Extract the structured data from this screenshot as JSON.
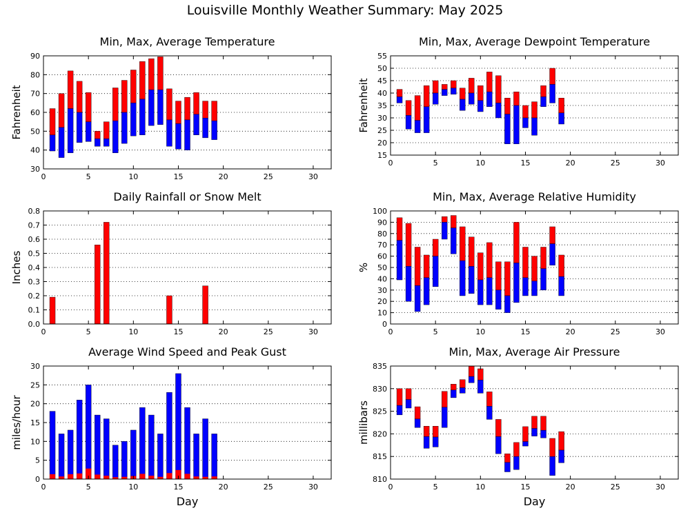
{
  "title": "Louisville Monthly Weather Summary: May 2025",
  "colors": {
    "max_part": "#ff0000",
    "min_part": "#0000ff",
    "grid": "#000000"
  },
  "chart_data": [
    {
      "id": "temperature",
      "type": "bar",
      "title": "Min, Max, Average Temperature",
      "xlabel": "",
      "ylabel": "Fahrenheit",
      "xlim": [
        0,
        32
      ],
      "ylim": [
        30,
        90
      ],
      "xticks": [
        0,
        5,
        10,
        15,
        20,
        25,
        30
      ],
      "yticks": [
        30,
        40,
        50,
        60,
        70,
        80,
        90
      ],
      "grid": true,
      "style": "range",
      "days": [
        1,
        2,
        3,
        4,
        5,
        6,
        7,
        8,
        9,
        10,
        11,
        12,
        13,
        14,
        15,
        16,
        17,
        18,
        19
      ],
      "min": [
        39.5,
        36,
        38.5,
        44,
        44.5,
        42,
        42,
        38.5,
        43.5,
        47.5,
        48,
        53,
        53.5,
        42,
        40.5,
        40,
        48,
        46.5,
        45.5
      ],
      "avg": [
        48,
        52,
        62,
        60,
        55,
        46,
        46,
        55.5,
        60,
        65,
        67,
        72,
        72,
        56,
        54,
        56,
        59,
        57,
        55.5
      ],
      "max": [
        62,
        70,
        82,
        76.5,
        70.5,
        50,
        55,
        73,
        77,
        82.5,
        87,
        88.5,
        89.5,
        72.5,
        66,
        68,
        70.5,
        66,
        66
      ]
    },
    {
      "id": "dewpoint",
      "type": "bar",
      "title": "Min, Max, Average Dewpoint Temperature",
      "xlabel": "",
      "ylabel": "Fahrenheit",
      "xlim": [
        0,
        32
      ],
      "ylim": [
        15,
        55
      ],
      "xticks": [
        0,
        5,
        10,
        15,
        20,
        25,
        30
      ],
      "yticks": [
        15,
        20,
        25,
        30,
        35,
        40,
        45,
        50,
        55
      ],
      "grid": true,
      "style": "range",
      "days": [
        1,
        2,
        3,
        4,
        5,
        6,
        7,
        8,
        9,
        10,
        11,
        12,
        13,
        14,
        15,
        16,
        17,
        18,
        19
      ],
      "min": [
        36,
        25.5,
        24,
        24,
        35.5,
        39,
        39.5,
        33,
        35.5,
        32.5,
        34.5,
        30,
        19.5,
        19.5,
        26,
        23,
        34.5,
        36,
        27.5
      ],
      "avg": [
        38.5,
        31,
        29,
        34.5,
        40,
        41.5,
        42,
        37.5,
        40,
        37,
        40.5,
        36,
        31.5,
        35,
        30,
        30,
        38.5,
        43.5,
        32
      ],
      "max": [
        41.5,
        37,
        39,
        43,
        45,
        43.5,
        45,
        42,
        46,
        43,
        48.5,
        47,
        38,
        40.5,
        35,
        36.5,
        43,
        50,
        38
      ]
    },
    {
      "id": "rainfall",
      "type": "bar",
      "title": "Daily Rainfall or Snow Melt",
      "xlabel": "",
      "ylabel": "Inches",
      "xlim": [
        0,
        32
      ],
      "ylim": [
        0,
        0.8
      ],
      "xticks": [
        0,
        5,
        10,
        15,
        20,
        25,
        30
      ],
      "yticks": [
        0,
        0.1,
        0.2,
        0.3,
        0.4,
        0.5,
        0.6,
        0.7,
        0.8
      ],
      "ytick_labels": [
        "0.0",
        "0.1",
        "0.2",
        "0.3",
        "0.4",
        "0.5",
        "0.6",
        "0.7",
        "0.8"
      ],
      "grid": true,
      "style": "single",
      "days": [
        1,
        6,
        7,
        14,
        18
      ],
      "values": [
        0.19,
        0.56,
        0.72,
        0.2,
        0.27
      ]
    },
    {
      "id": "humidity",
      "type": "bar",
      "title": "Min, Max, Average Relative Humidity",
      "xlabel": "",
      "ylabel": "%",
      "xlim": [
        0,
        32
      ],
      "ylim": [
        0,
        100
      ],
      "xticks": [
        0,
        5,
        10,
        15,
        20,
        25,
        30
      ],
      "yticks": [
        0,
        10,
        20,
        30,
        40,
        50,
        60,
        70,
        80,
        90,
        100
      ],
      "grid": true,
      "style": "range",
      "days": [
        1,
        2,
        3,
        4,
        5,
        6,
        7,
        8,
        9,
        10,
        11,
        12,
        13,
        14,
        15,
        16,
        17,
        18,
        19
      ],
      "min": [
        39,
        20,
        11,
        17,
        33,
        75,
        62,
        25,
        27,
        17,
        17,
        13,
        10,
        19,
        25,
        25,
        30,
        52,
        25
      ],
      "avg": [
        74,
        51,
        34,
        41,
        60,
        90,
        85,
        56,
        51,
        39,
        41,
        30,
        25,
        54,
        41,
        38,
        49,
        71,
        42
      ],
      "max": [
        94,
        89,
        68,
        61,
        75,
        95,
        96,
        86,
        77,
        63,
        72,
        55,
        55,
        90,
        68,
        60,
        68,
        86,
        61
      ]
    },
    {
      "id": "wind",
      "type": "bar",
      "title": "Average Wind Speed and Peak Gust",
      "xlabel": "Day",
      "ylabel": "miles/hour",
      "xlim": [
        0,
        32
      ],
      "ylim": [
        0,
        30
      ],
      "xticks": [
        0,
        5,
        10,
        15,
        20,
        25,
        30
      ],
      "yticks": [
        0,
        5,
        10,
        15,
        20,
        25,
        30
      ],
      "grid": true,
      "style": "wind",
      "days": [
        1,
        2,
        3,
        4,
        5,
        6,
        7,
        8,
        9,
        10,
        11,
        12,
        13,
        14,
        15,
        16,
        17,
        18,
        19
      ],
      "avg_speed": [
        1.3,
        0.7,
        1.3,
        1.5,
        2.8,
        1.2,
        0.9,
        0.5,
        0.6,
        0.8,
        1.4,
        0.9,
        0.6,
        1.6,
        2.4,
        1.4,
        0.7,
        0.6,
        0.7
      ],
      "peak_gust": [
        18,
        12,
        13,
        21,
        25,
        17,
        16,
        9,
        10,
        13,
        19,
        17,
        12,
        23,
        28,
        19,
        12,
        16,
        12
      ]
    },
    {
      "id": "pressure",
      "type": "bar",
      "title": "Min, Max, Average Air Pressure",
      "xlabel": "Day",
      "ylabel": "millibars",
      "xlim": [
        0,
        32
      ],
      "ylim": [
        810,
        835
      ],
      "xticks": [
        0,
        5,
        10,
        15,
        20,
        25,
        30
      ],
      "yticks": [
        810,
        815,
        820,
        825,
        830,
        835
      ],
      "grid": true,
      "style": "range",
      "days": [
        1,
        2,
        3,
        4,
        5,
        6,
        7,
        8,
        9,
        10,
        11,
        12,
        13,
        14,
        15,
        16,
        17,
        18,
        19
      ],
      "min": [
        824.2,
        825.7,
        821.4,
        816.8,
        817.1,
        821.4,
        828.0,
        829.0,
        831.3,
        829.0,
        823.2,
        815.6,
        811.6,
        812.1,
        817.3,
        819.5,
        819.1,
        810.8,
        813.6
      ],
      "avg": [
        826.3,
        827.6,
        823.3,
        819.4,
        819.3,
        825.9,
        829.7,
        830.2,
        832.7,
        831.9,
        826.1,
        819.4,
        813.7,
        815.0,
        818.3,
        821.2,
        820.8,
        815.0,
        816.4
      ],
      "max": [
        830.0,
        830.0,
        826.0,
        821.7,
        821.7,
        829.4,
        831.0,
        832.0,
        835.0,
        834.4,
        829.3,
        823.2,
        815.6,
        818.1,
        821.6,
        823.9,
        823.9,
        819.0,
        820.5
      ]
    }
  ]
}
